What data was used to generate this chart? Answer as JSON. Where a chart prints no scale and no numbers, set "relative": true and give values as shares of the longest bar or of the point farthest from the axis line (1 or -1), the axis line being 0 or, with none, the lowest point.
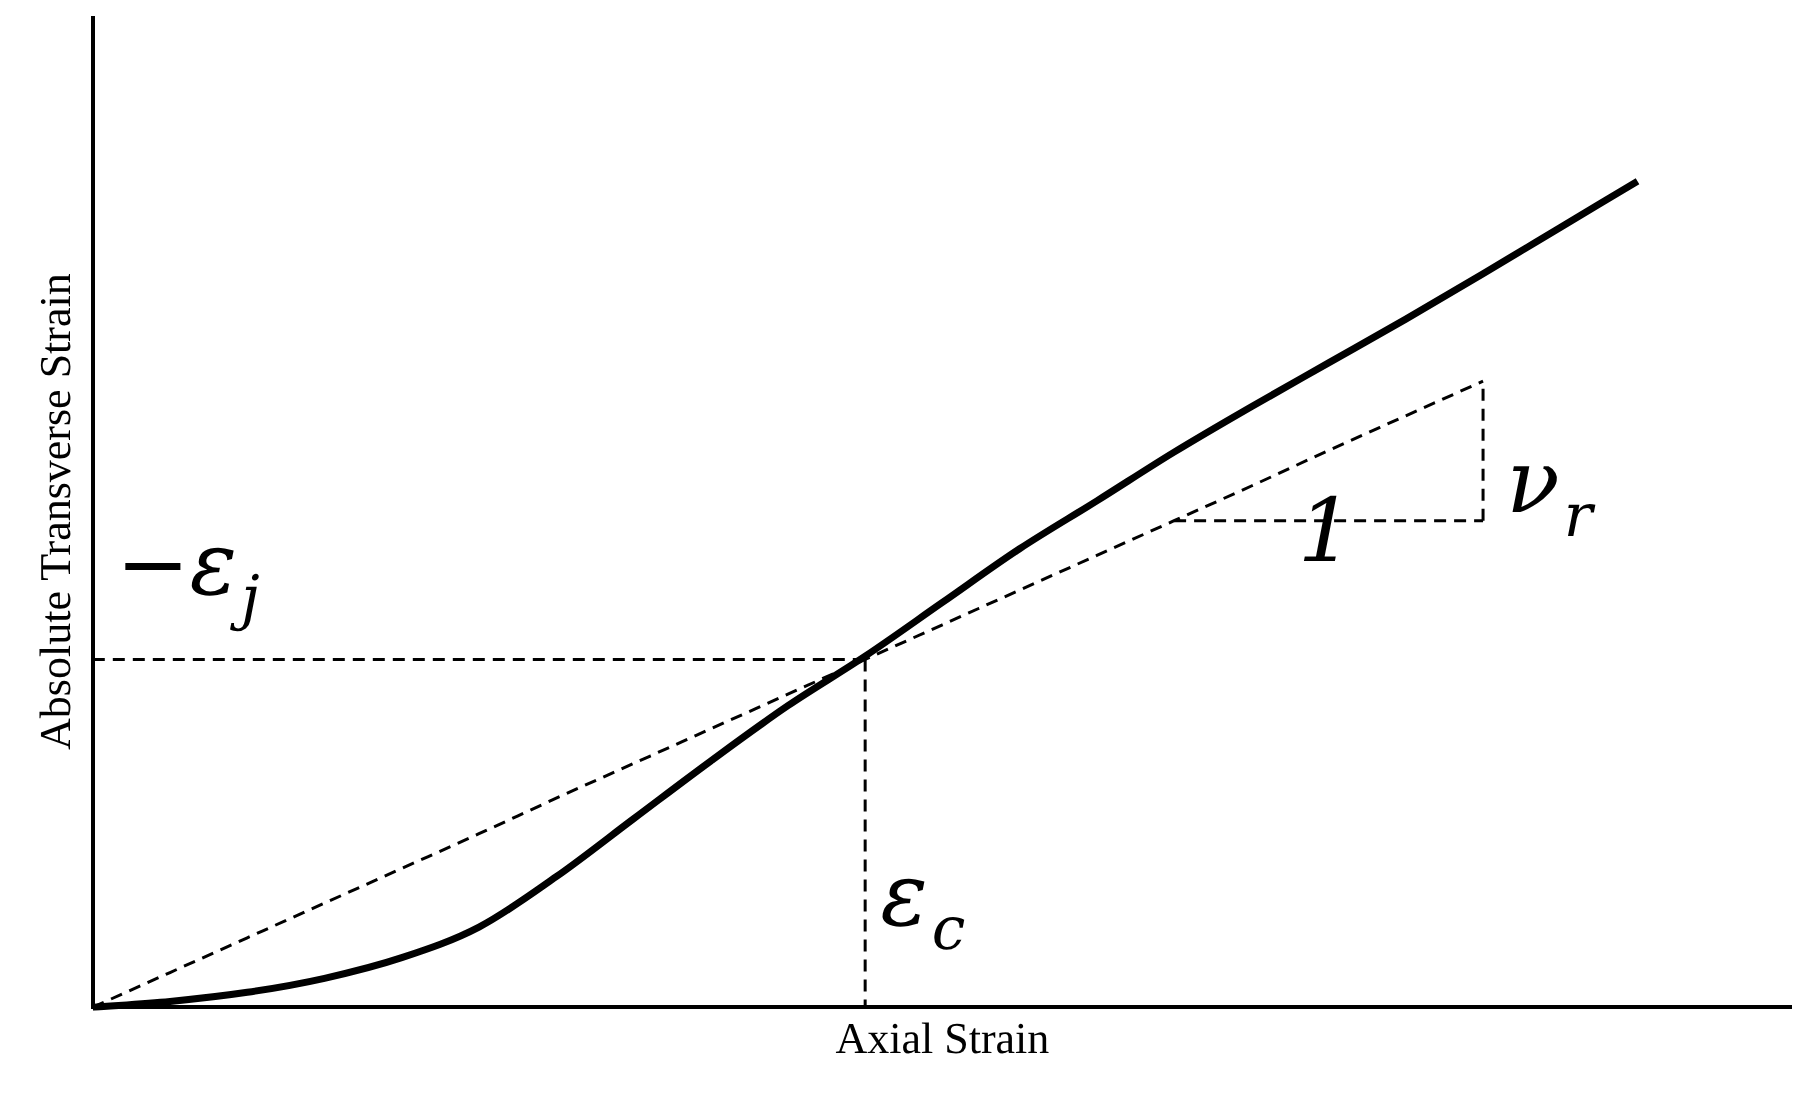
{
  "chart_data": {
    "type": "line",
    "relative": true,
    "xlabel": "Axial Strain",
    "ylabel": "Absolute Transverse Strain",
    "marker": "none",
    "categories": [
      null,
      null,
      null,
      null,
      null,
      null,
      null,
      null,
      null,
      null,
      null,
      null,
      null,
      null,
      null,
      null,
      null,
      null,
      null,
      null,
      null,
      null,
      null
    ],
    "series": [
      {
        "color": "#000000",
        "line_style": "solid",
        "values": [
          0,
          0.007,
          0.018,
          0.035,
          0.06,
          0.097,
          0.158,
          0.228,
          0.298,
          0.365,
          0.425,
          0.49,
          0.555,
          0.613,
          0.672,
          0.727,
          0.78,
          0.833,
          0.888,
          0.944,
          1,
          null,
          null
        ]
      },
      {
        "color": "#000000",
        "line_style": "dashed",
        "values": [
          0,
          0.042,
          0.084,
          0.126,
          0.168,
          0.21,
          0.253,
          0.295,
          0.337,
          0.379,
          0.421,
          0.463,
          0.505,
          0.547,
          0.589,
          0.631,
          0.674,
          0.716,
          0.758,
          null,
          null,
          null,
          null
        ]
      },
      {
        "color": "#000000",
        "line_style": "dashed",
        "values": [
          null,
          null,
          null,
          null,
          null,
          null,
          null,
          null,
          null,
          null,
          null,
          null,
          null,
          null,
          0.589,
          0.589,
          0.589,
          0.589,
          0.589,
          null,
          null,
          null,
          null
        ]
      },
      {
        "color": "#000000",
        "line_style": "dashed",
        "values": [
          0.421,
          0.421,
          0.421,
          0.421,
          0.421,
          0.421,
          0.421,
          0.421,
          0.421,
          0.421,
          0.421,
          null,
          null,
          null,
          null,
          null,
          null,
          null,
          null,
          null,
          null,
          null,
          null
        ]
      }
    ],
    "annotations": [
      "−ε$_{j}$",
      "ε$_{c}$",
      "ν$_{r}$",
      "1"
    ]
  }
}
